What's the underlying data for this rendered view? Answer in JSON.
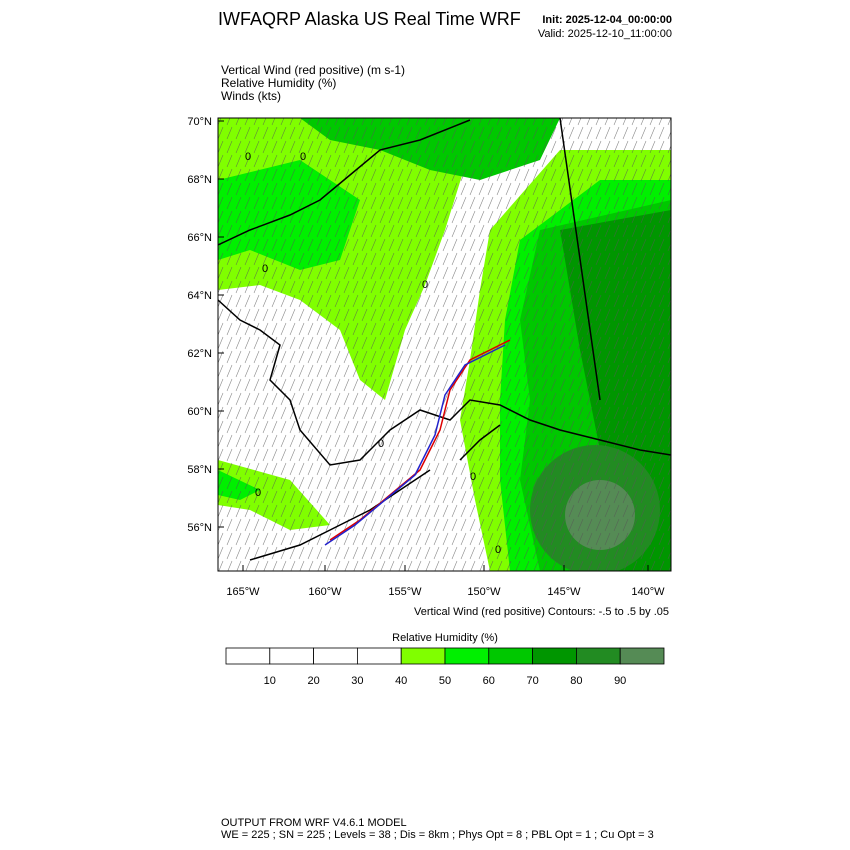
{
  "header": {
    "title": "IWFAQRP Alaska US Real Time WRF",
    "init": "Init: 2025-12-04_00:00:00",
    "valid": "Valid: 2025-12-10_11:00:00"
  },
  "fields": [
    "Vertical Wind (red positive)   (m s-1)",
    "Relative Humidity   (%)",
    "Winds   (kts)"
  ],
  "map": {
    "lat_labels": [
      "70°N",
      "68°N",
      "66°N",
      "64°N",
      "62°N",
      "60°N",
      "58°N",
      "56°N"
    ],
    "lon_labels": [
      "165°W",
      "160°W",
      "155°W",
      "150°W",
      "145°W",
      "140°W"
    ],
    "contour_labels": [
      "0",
      "0",
      "0",
      "0",
      "0",
      "0",
      "0",
      "0"
    ],
    "contour_note": "Vertical Wind (red positive) Contours: -.5 to .5 by .05"
  },
  "colorbar": {
    "title": "Relative Humidity  (%)",
    "labels": [
      "10",
      "20",
      "30",
      "40",
      "50",
      "60",
      "70",
      "80",
      "90"
    ],
    "colors": [
      "#ffffff",
      "#ffffff",
      "#ffffff",
      "#ffffff",
      "#80ff00",
      "#00f000",
      "#00c800",
      "#009600",
      "#228b22",
      "#558b55"
    ]
  },
  "footer": {
    "line1": "OUTPUT FROM WRF V4.6.1 MODEL",
    "line2": "WE = 225 ; SN = 225 ; Levels = 38 ; Dis = 8km ; Phys Opt = 8 ; PBL Opt = 1 ; Cu Opt = 3"
  }
}
